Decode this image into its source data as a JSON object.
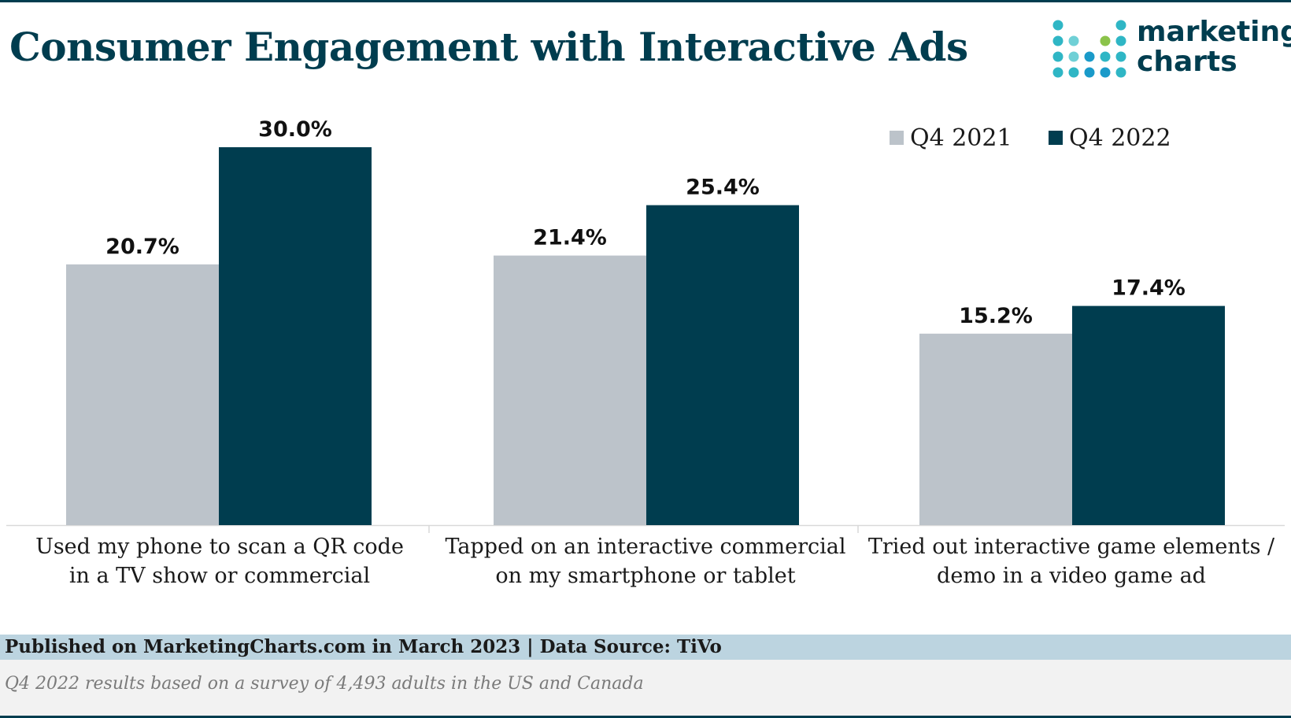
{
  "header": {
    "title": "Consumer Engagement with Interactive Ads",
    "logo_line1": "marketing",
    "logo_line2": "charts"
  },
  "colors": {
    "q4_2021": "#bcc3ca",
    "q4_2022": "#003d4f",
    "brand_dark": "#003d4f"
  },
  "chart_data": {
    "type": "bar",
    "title": "Consumer Engagement with Interactive Ads",
    "categories": [
      "Used my phone to scan a QR code in a TV show or commercial",
      "Tapped on an interactive commercial on my smartphone or tablet",
      "Tried out interactive game elements / demo in a video game ad"
    ],
    "category_lines": [
      [
        "Used my phone to scan a QR code",
        "in a TV show or commercial"
      ],
      [
        "Tapped on an interactive commercial",
        "on my smartphone or tablet"
      ],
      [
        "Tried out interactive game elements /",
        "demo in a video game ad"
      ]
    ],
    "series": [
      {
        "name": "Q4 2021",
        "values": [
          20.7,
          21.4,
          15.2
        ],
        "labels": [
          "20.7%",
          "21.4%",
          "15.2%"
        ]
      },
      {
        "name": "Q4 2022",
        "values": [
          30.0,
          25.4,
          17.4
        ],
        "labels": [
          "30.0%",
          "25.4%",
          "17.4%"
        ]
      }
    ],
    "xlabel": "",
    "ylabel": "",
    "ylim": [
      0,
      30
    ],
    "grid": false,
    "legend_position": "top-right"
  },
  "footer": {
    "published": "Published on MarketingCharts.com in March 2023 | Data Source: TiVo",
    "note": "Q4 2022 results based on a survey of 4,493 adults in the US and Canada"
  }
}
